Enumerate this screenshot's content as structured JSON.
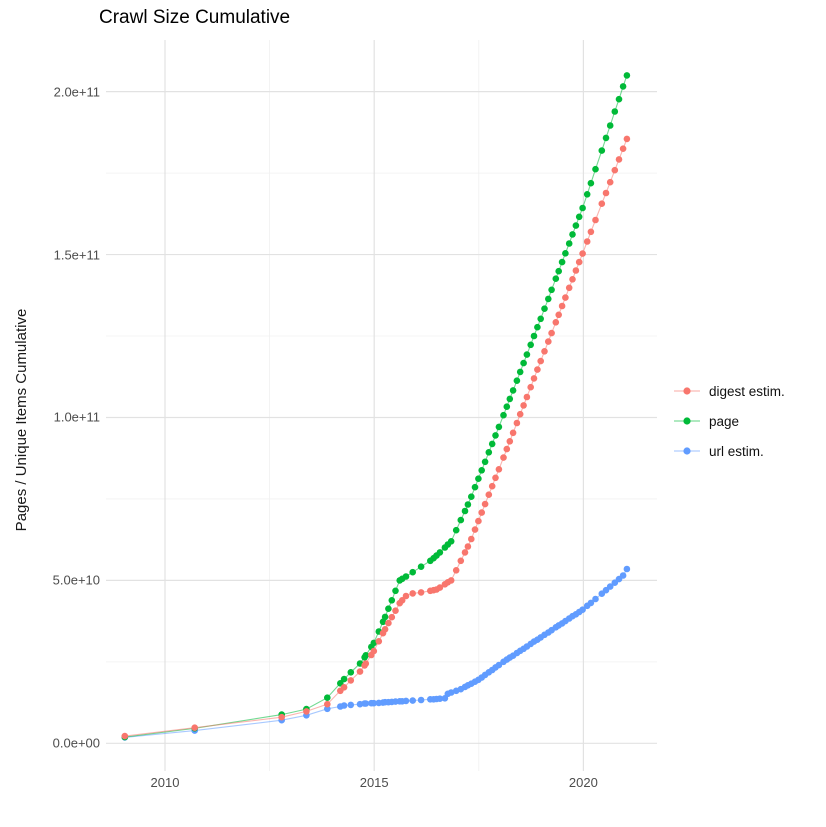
{
  "title": "Crawl Size Cumulative",
  "y_axis_label": "Pages / Unique Items Cumulative",
  "legend": {
    "items": [
      {
        "label": "digest estim.",
        "color": "#F8766D"
      },
      {
        "label": "page",
        "color": "#00BA38"
      },
      {
        "label": "url estim.",
        "color": "#619CFF"
      }
    ]
  },
  "chart_data": {
    "type": "scatter",
    "title": "Crawl Size Cumulative",
    "xlabel": "",
    "ylabel": "Pages / Unique Items Cumulative",
    "legend_position": "right",
    "grid": "major+minor",
    "background": "#ffffff",
    "grid_major_color": "#e2e2e2",
    "grid_minor_color": "#f0f0f0",
    "value_unit": "items, values_e9 are in billions (1e9)",
    "x_unit": "decimal year (crawl date)",
    "xlim": [
      2008.55,
      2021.8
    ],
    "ylim_e9": [
      -9,
      215
    ],
    "x_ticks": [
      {
        "label": "2010",
        "x": 2010
      },
      {
        "label": "2015",
        "x": 2015
      },
      {
        "label": "2020",
        "x": 2020
      }
    ],
    "x_minor": [
      2012.5,
      2017.5
    ],
    "y_ticks": [
      {
        "label": "0.0e+00",
        "v": 0
      },
      {
        "label": "5.0e+10",
        "v": 50
      },
      {
        "label": "1.0e+11",
        "v": 100
      },
      {
        "label": "1.5e+11",
        "v": 150
      },
      {
        "label": "2.0e+11",
        "v": 200
      }
    ],
    "y_minor": [
      25,
      75,
      125,
      175
    ],
    "x": [
      2009.04,
      2010.71,
      2012.79,
      2013.38,
      2013.88,
      2014.19,
      2014.28,
      2014.44,
      2014.66,
      2014.77,
      2014.8,
      2014.93,
      2014.99,
      2015.11,
      2015.21,
      2015.26,
      2015.34,
      2015.42,
      2015.51,
      2015.61,
      2015.67,
      2015.76,
      2015.92,
      2016.12,
      2016.34,
      2016.42,
      2016.49,
      2016.57,
      2016.69,
      2016.76,
      2016.84,
      2016.96,
      2017.07,
      2017.17,
      2017.24,
      2017.32,
      2017.41,
      2017.49,
      2017.57,
      2017.65,
      2017.74,
      2017.82,
      2017.9,
      2017.98,
      2018.09,
      2018.17,
      2018.24,
      2018.32,
      2018.41,
      2018.49,
      2018.57,
      2018.65,
      2018.74,
      2018.82,
      2018.9,
      2018.98,
      2019.07,
      2019.16,
      2019.24,
      2019.34,
      2019.41,
      2019.49,
      2019.57,
      2019.66,
      2019.74,
      2019.82,
      2019.9,
      2019.98,
      2020.09,
      2020.18,
      2020.29,
      2020.44,
      2020.54,
      2020.64,
      2020.75,
      2020.85,
      2020.95,
      2021.04
    ],
    "series": [
      {
        "name": "digest estim.",
        "color": "#F8766D",
        "values_e9": [
          2.2,
          4.8,
          8.0,
          9.8,
          12.0,
          16.1,
          17.2,
          19.3,
          22.0,
          23.9,
          24.5,
          27.1,
          28.3,
          31.3,
          33.8,
          35.0,
          36.9,
          38.7,
          40.7,
          43.0,
          43.9,
          45.2,
          46.0,
          46.3,
          46.8,
          47.0,
          47.2,
          47.8,
          48.8,
          49.4,
          50.0,
          53.1,
          56.0,
          58.6,
          60.4,
          62.7,
          65.6,
          68.2,
          70.8,
          73.4,
          76.3,
          78.9,
          81.5,
          84.1,
          87.7,
          90.3,
          92.7,
          95.3,
          98.3,
          101.0,
          103.7,
          106.3,
          109.3,
          112.0,
          114.7,
          117.3,
          120.3,
          123.3,
          125.9,
          129.2,
          131.5,
          134.2,
          136.8,
          139.8,
          142.4,
          145.1,
          147.7,
          150.3,
          154.0,
          157.0,
          160.6,
          165.6,
          168.9,
          172.2,
          175.9,
          179.2,
          182.5,
          185.5
        ]
      },
      {
        "name": "page",
        "color": "#00BA38",
        "values_e9": [
          1.9,
          4.6,
          8.8,
          10.5,
          14.0,
          18.4,
          19.7,
          21.8,
          24.5,
          26.4,
          27.0,
          29.6,
          30.8,
          34.3,
          37.3,
          38.8,
          41.3,
          43.9,
          46.8,
          50.0,
          50.5,
          51.2,
          52.5,
          54.2,
          56.0,
          56.8,
          57.6,
          58.6,
          60.1,
          61.0,
          62.0,
          65.4,
          68.5,
          71.3,
          73.3,
          75.7,
          78.6,
          81.2,
          83.8,
          86.4,
          89.3,
          91.9,
          94.5,
          97.1,
          100.7,
          103.3,
          105.7,
          108.3,
          111.3,
          114.0,
          116.7,
          119.3,
          122.3,
          125.0,
          127.7,
          130.3,
          133.4,
          136.4,
          139.2,
          142.6,
          144.9,
          147.7,
          150.4,
          153.4,
          156.2,
          158.9,
          161.6,
          164.3,
          168.5,
          171.9,
          176.2,
          181.9,
          185.8,
          189.6,
          193.9,
          197.7,
          201.6,
          205.0
        ]
      },
      {
        "name": "url estim.",
        "color": "#619CFF",
        "values_e9": [
          1.8,
          3.9,
          7.1,
          8.6,
          10.6,
          11.3,
          11.6,
          11.8,
          12.0,
          12.2,
          12.2,
          12.3,
          12.3,
          12.4,
          12.5,
          12.6,
          12.6,
          12.7,
          12.8,
          12.9,
          12.9,
          13.0,
          13.1,
          13.3,
          13.5,
          13.5,
          13.6,
          13.7,
          13.8,
          15.2,
          15.6,
          16.1,
          16.6,
          17.3,
          17.8,
          18.3,
          18.9,
          19.5,
          20.2,
          21.0,
          21.8,
          22.5,
          23.3,
          24.0,
          25.0,
          25.7,
          26.3,
          26.9,
          27.7,
          28.4,
          29.0,
          29.7,
          30.5,
          31.2,
          31.8,
          32.5,
          33.3,
          34.0,
          34.7,
          35.6,
          36.2,
          36.8,
          37.5,
          38.3,
          39.0,
          39.6,
          40.3,
          41.0,
          42.2,
          43.1,
          44.3,
          45.9,
          47.0,
          48.1,
          49.3,
          50.4,
          51.5,
          53.5
        ]
      }
    ]
  }
}
